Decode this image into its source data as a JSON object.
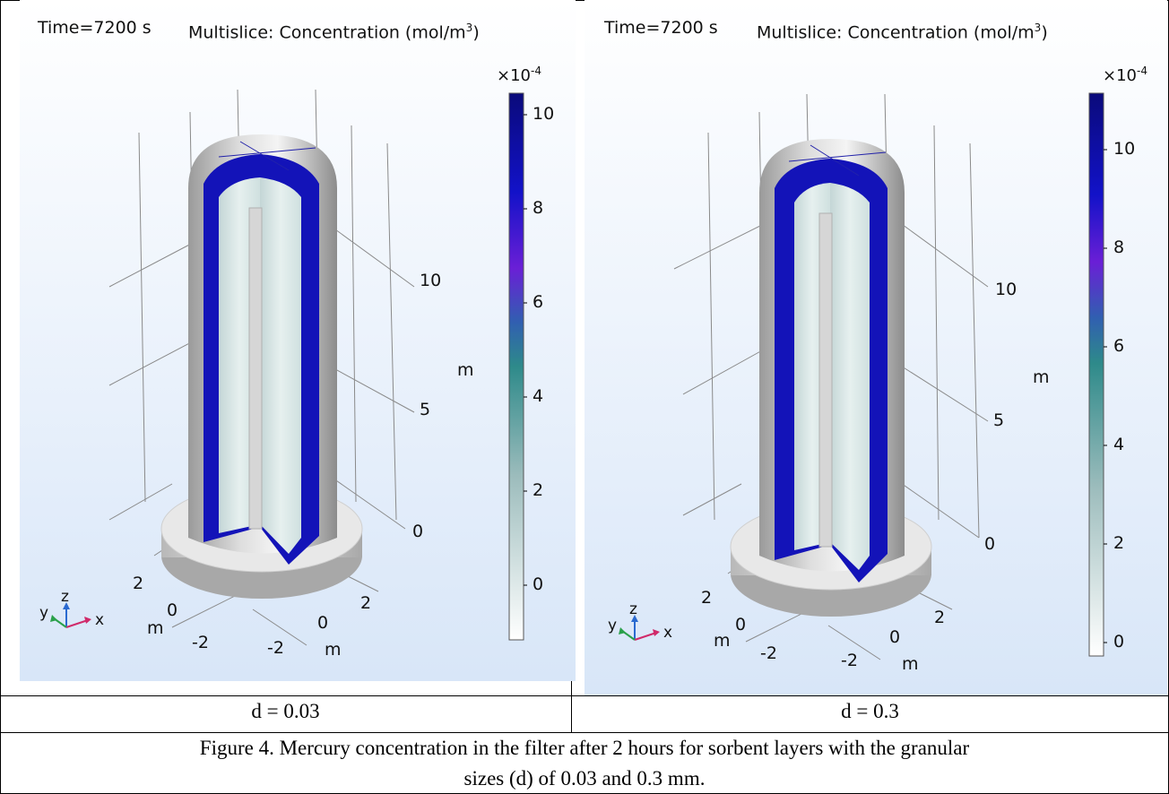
{
  "figure": {
    "panels": [
      {
        "id": "left",
        "time_label": "Time=7200 s",
        "title_prefix": "Multislice: Concentration (mol/m",
        "title_sup": "3",
        "title_suffix": ")",
        "colorbar_exponent_base": "×10",
        "colorbar_exponent_power": "-4",
        "colorbar_ticks": [
          "10",
          "8",
          "6",
          "4",
          "2",
          "0"
        ],
        "z_ticks": [
          "10",
          "5",
          "0"
        ],
        "z_unit": "m",
        "y_ticks": [
          "2",
          "0",
          "-2"
        ],
        "x_ticks": [
          "2",
          "0",
          "-2"
        ],
        "y_unit": "m",
        "x_unit": "m",
        "triad": {
          "x": "x",
          "y": "y",
          "z": "z"
        },
        "cell_label": "d = 0.03"
      },
      {
        "id": "right",
        "time_label": "Time=7200 s",
        "title_prefix": "Multislice: Concentration (mol/m",
        "title_sup": "3",
        "title_suffix": ")",
        "colorbar_exponent_base": "×10",
        "colorbar_exponent_power": "-4",
        "colorbar_ticks": [
          "10",
          "8",
          "6",
          "4",
          "2",
          "0"
        ],
        "z_ticks": [
          "10",
          "5",
          "0"
        ],
        "z_unit": "m",
        "y_ticks": [
          "2",
          "0",
          "-2"
        ],
        "x_ticks": [
          "2",
          "0",
          "-2"
        ],
        "y_unit": "m",
        "x_unit": "m",
        "triad": {
          "x": "x",
          "y": "y",
          "z": "z"
        },
        "cell_label": "d = 0.3"
      }
    ],
    "caption_line1": "Figure 4. Mercury concentration in the filter after 2 hours for sorbent layers with the granular",
    "caption_line2": "sizes (d) of 0.03 and 0.3 mm."
  },
  "colors": {
    "background_top": "#ffffff",
    "background_bottom": "#dbe8f8",
    "colormap_high": "#0a0a8c",
    "colormap_mid_purple": "#6a1fd6",
    "colormap_mid_teal": "#2e8a8a",
    "colormap_low": "#ffffff"
  }
}
